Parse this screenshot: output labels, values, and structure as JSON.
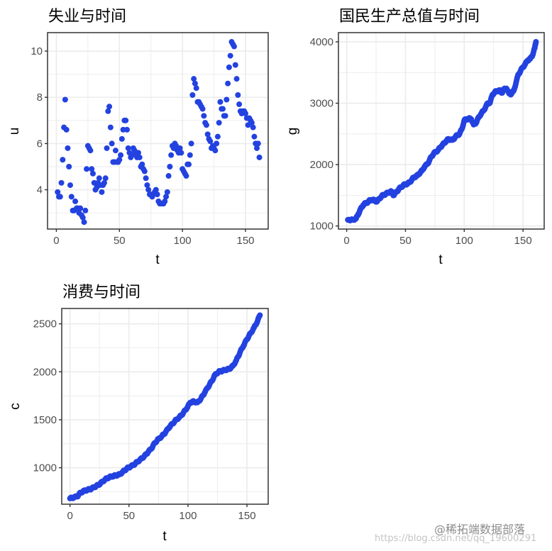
{
  "chart_data": [
    {
      "type": "scatter",
      "title": "失业与时间",
      "xlabel": "t",
      "ylabel": "u",
      "xlim": [
        -7,
        168
      ],
      "ylim": [
        2.3,
        10.8
      ],
      "xticks": [
        0,
        50,
        100,
        150
      ],
      "yticks": [
        4,
        6,
        8,
        10
      ],
      "grid": true,
      "color": "#2342e0",
      "x": [
        1,
        2,
        3,
        4,
        5,
        6,
        7,
        8,
        9,
        10,
        11,
        12,
        13,
        14,
        15,
        16,
        17,
        18,
        19,
        20,
        21,
        22,
        23,
        24,
        25,
        26,
        27,
        28,
        29,
        30,
        31,
        32,
        33,
        34,
        35,
        36,
        37,
        38,
        39,
        40,
        41,
        42,
        43,
        44,
        45,
        46,
        47,
        48,
        49,
        50,
        51,
        52,
        53,
        54,
        55,
        56,
        57,
        58,
        59,
        60,
        61,
        62,
        63,
        64,
        65,
        66,
        67,
        68,
        69,
        70,
        71,
        72,
        73,
        74,
        75,
        76,
        77,
        78,
        79,
        80,
        81,
        82,
        83,
        84,
        85,
        86,
        87,
        88,
        89,
        90,
        91,
        92,
        93,
        94,
        95,
        96,
        97,
        98,
        99,
        100,
        101,
        102,
        103,
        104,
        105,
        106,
        107,
        108,
        109,
        110,
        111,
        112,
        113,
        114,
        115,
        116,
        117,
        118,
        119,
        120,
        121,
        122,
        123,
        124,
        125,
        126,
        127,
        128,
        129,
        130,
        131,
        132,
        133,
        134,
        135,
        136,
        137,
        138,
        139,
        140,
        141,
        142,
        143,
        144,
        145,
        146,
        147,
        148,
        149,
        150,
        151,
        152,
        153,
        154,
        155,
        156,
        157,
        158,
        159,
        160,
        161
      ],
      "values": [
        3.9,
        3.7,
        3.7,
        4.3,
        5.3,
        6.7,
        7.9,
        6.6,
        5.8,
        5.0,
        4.2,
        3.7,
        3.1,
        3.1,
        3.5,
        3.2,
        3.2,
        3.0,
        3.2,
        2.9,
        2.8,
        2.6,
        3.1,
        4.9,
        5.9,
        5.8,
        5.7,
        4.9,
        4.7,
        4.3,
        4.0,
        4.1,
        4.3,
        4.5,
        4.2,
        3.9,
        4.2,
        4.3,
        4.5,
        5.8,
        7.4,
        7.6,
        6.7,
        6.0,
        5.2,
        5.2,
        5.7,
        5.2,
        5.2,
        5.3,
        5.5,
        6.2,
        6.6,
        7.0,
        7.0,
        6.6,
        5.8,
        5.6,
        5.4,
        5.5,
        5.8,
        5.7,
        5.5,
        5.4,
        5.6,
        5.4,
        5.0,
        5.1,
        4.9,
        4.8,
        4.5,
        4.2,
        4.0,
        3.8,
        3.8,
        3.7,
        3.8,
        3.9,
        4.0,
        3.8,
        3.5,
        3.4,
        3.4,
        3.4,
        3.4,
        3.5,
        3.7,
        3.9,
        4.6,
        5.0,
        5.5,
        5.9,
        5.8,
        6.0,
        5.9,
        5.7,
        5.6,
        5.8,
        5.6,
        4.9,
        4.8,
        4.7,
        4.6,
        5.1,
        5.1,
        5.5,
        6.0,
        8.1,
        8.8,
        8.6,
        8.4,
        7.8,
        7.8,
        7.7,
        7.6,
        7.5,
        7.2,
        6.9,
        6.8,
        6.4,
        6.2,
        6.1,
        5.8,
        5.9,
        5.8,
        5.7,
        6.0,
        6.3,
        6.9,
        7.8,
        7.5,
        7.5,
        7.2,
        7.2,
        7.9,
        8.6,
        9.3,
        9.8,
        10.4,
        10.3,
        10.2,
        9.4,
        8.8,
        8.1,
        7.7,
        7.4,
        7.3,
        7.4,
        7.4,
        7.3,
        7.1,
        6.8,
        7.1,
        7.0,
        6.9,
        6.7,
        6.3,
        6.0,
        5.8,
        6.0,
        5.4
      ]
    },
    {
      "type": "scatter",
      "title": "国民生产总值与时间",
      "xlabel": "t",
      "ylabel": "g",
      "xlim": [
        -7,
        168
      ],
      "ylim": [
        950,
        4150
      ],
      "xticks": [
        0,
        50,
        100,
        150
      ],
      "yticks": [
        1000,
        2000,
        3000,
        4000
      ],
      "grid": true,
      "color": "#2342e0",
      "x": [
        1,
        5,
        8,
        10,
        12,
        14,
        16,
        18,
        20,
        22,
        24,
        26,
        28,
        30,
        32,
        34,
        36,
        38,
        40,
        42,
        44,
        46,
        48,
        50,
        52,
        54,
        56,
        58,
        60,
        62,
        64,
        66,
        68,
        70,
        72,
        74,
        76,
        78,
        80,
        82,
        84,
        86,
        88,
        90,
        92,
        94,
        96,
        98,
        100,
        102,
        104,
        106,
        108,
        110,
        112,
        114,
        116,
        118,
        120,
        122,
        124,
        126,
        128,
        130,
        132,
        134,
        136,
        138,
        140,
        142,
        144,
        146,
        148,
        150,
        152,
        154,
        156,
        158,
        160,
        161
      ],
      "values": [
        1100,
        1100,
        1120,
        1200,
        1280,
        1340,
        1370,
        1390,
        1420,
        1430,
        1410,
        1400,
        1450,
        1490,
        1510,
        1530,
        1550,
        1560,
        1500,
        1550,
        1590,
        1630,
        1660,
        1680,
        1690,
        1720,
        1770,
        1800,
        1820,
        1860,
        1900,
        1960,
        2000,
        2050,
        2130,
        2180,
        2210,
        2240,
        2290,
        2330,
        2370,
        2410,
        2410,
        2400,
        2440,
        2480,
        2500,
        2580,
        2720,
        2740,
        2750,
        2740,
        2650,
        2680,
        2760,
        2820,
        2870,
        2930,
        3000,
        3010,
        3140,
        3180,
        3200,
        3210,
        3170,
        3230,
        3240,
        3160,
        3150,
        3200,
        3330,
        3470,
        3530,
        3590,
        3640,
        3700,
        3720,
        3780,
        3900,
        4000
      ]
    },
    {
      "type": "scatter",
      "title": "消费与时间",
      "xlabel": "t",
      "ylabel": "c",
      "xlim": [
        -7,
        168
      ],
      "ylim": [
        620,
        2660
      ],
      "xticks": [
        0,
        50,
        100,
        150
      ],
      "yticks": [
        1000,
        1500,
        2000,
        2500
      ],
      "grid": true,
      "color": "#2342e0",
      "x": [
        0,
        3,
        6,
        9,
        12,
        15,
        18,
        21,
        24,
        27,
        30,
        33,
        36,
        39,
        42,
        45,
        48,
        51,
        54,
        57,
        60,
        63,
        66,
        69,
        72,
        75,
        78,
        81,
        84,
        87,
        90,
        93,
        96,
        99,
        102,
        105,
        108,
        111,
        114,
        117,
        120,
        123,
        126,
        129,
        132,
        135,
        138,
        141,
        144,
        147,
        150,
        153,
        156,
        159,
        161
      ],
      "values": [
        680,
        690,
        700,
        740,
        760,
        770,
        780,
        800,
        820,
        850,
        880,
        900,
        910,
        920,
        930,
        960,
        990,
        1010,
        1030,
        1060,
        1090,
        1120,
        1160,
        1200,
        1260,
        1300,
        1330,
        1370,
        1420,
        1460,
        1500,
        1530,
        1570,
        1620,
        1680,
        1690,
        1680,
        1720,
        1780,
        1840,
        1900,
        1970,
        2000,
        2010,
        2020,
        2030,
        2060,
        2120,
        2200,
        2270,
        2340,
        2400,
        2460,
        2530,
        2590
      ]
    }
  ],
  "watermark": {
    "line1": "@稀拓端数据部落",
    "line2": "https://blog.csdn.net/qq_19600291"
  }
}
